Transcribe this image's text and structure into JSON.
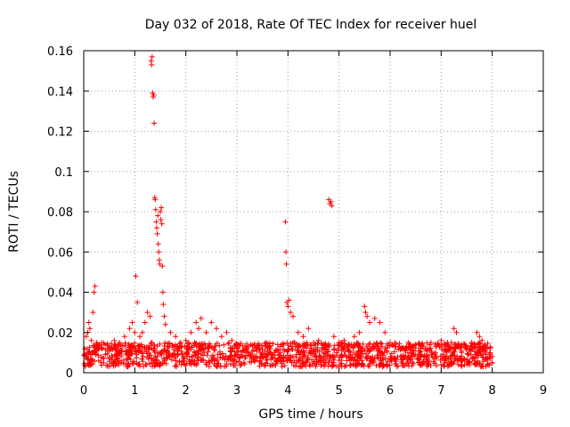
{
  "chart_data": {
    "type": "scatter",
    "title": "Day 032 of 2018, Rate Of TEC Index for receiver huel",
    "xlabel": "GPS time / hours",
    "ylabel": "ROTI / TECUs",
    "xlim": [
      0,
      9
    ],
    "ylim": [
      0,
      0.16
    ],
    "xticks": [
      0,
      1,
      2,
      3,
      4,
      5,
      6,
      7,
      8,
      9
    ],
    "xtick_labels": [
      "0",
      "1",
      "2",
      "3",
      "4",
      "5",
      "6",
      "7",
      "8",
      "9"
    ],
    "yticks": [
      0,
      0.02,
      0.04,
      0.06,
      0.08,
      0.1,
      0.12,
      0.14,
      0.16
    ],
    "ytick_labels": [
      "0",
      "0.02",
      "0.04",
      "0.06",
      "0.08",
      "0.1",
      "0.12",
      "0.14",
      "0.16"
    ],
    "grid": true,
    "marker": "+",
    "marker_color": "#ff0000",
    "series": [
      {
        "name": "ROTI",
        "points": [
          [
            0.02,
            0.012
          ],
          [
            0.05,
            0.018
          ],
          [
            0.08,
            0.02
          ],
          [
            0.1,
            0.025
          ],
          [
            0.12,
            0.022
          ],
          [
            0.15,
            0.016
          ],
          [
            0.18,
            0.03
          ],
          [
            0.2,
            0.04
          ],
          [
            0.22,
            0.043
          ],
          [
            0.25,
            0.015
          ],
          [
            0.3,
            0.012
          ],
          [
            0.4,
            0.014
          ],
          [
            0.5,
            0.013
          ],
          [
            0.6,
            0.016
          ],
          [
            0.7,
            0.015
          ],
          [
            0.8,
            0.018
          ],
          [
            0.9,
            0.022
          ],
          [
            0.95,
            0.025
          ],
          [
            1.0,
            0.02
          ],
          [
            1.02,
            0.048
          ],
          [
            1.05,
            0.035
          ],
          [
            1.1,
            0.018
          ],
          [
            1.15,
            0.02
          ],
          [
            1.2,
            0.025
          ],
          [
            1.25,
            0.03
          ],
          [
            1.3,
            0.028
          ],
          [
            1.32,
            0.155
          ],
          [
            1.33,
            0.153
          ],
          [
            1.34,
            0.157
          ],
          [
            1.35,
            0.139
          ],
          [
            1.36,
            0.137
          ],
          [
            1.37,
            0.138
          ],
          [
            1.38,
            0.124
          ],
          [
            1.39,
            0.087
          ],
          [
            1.4,
            0.086
          ],
          [
            1.41,
            0.081
          ],
          [
            1.42,
            0.075
          ],
          [
            1.43,
            0.072
          ],
          [
            1.44,
            0.069
          ],
          [
            1.45,
            0.078
          ],
          [
            1.46,
            0.064
          ],
          [
            1.47,
            0.06
          ],
          [
            1.48,
            0.056
          ],
          [
            1.49,
            0.054
          ],
          [
            1.5,
            0.08
          ],
          [
            1.51,
            0.076
          ],
          [
            1.52,
            0.082
          ],
          [
            1.53,
            0.074
          ],
          [
            1.54,
            0.053
          ],
          [
            1.55,
            0.04
          ],
          [
            1.56,
            0.034
          ],
          [
            1.58,
            0.028
          ],
          [
            1.6,
            0.024
          ],
          [
            1.7,
            0.02
          ],
          [
            1.8,
            0.018
          ],
          [
            1.9,
            0.015
          ],
          [
            2.0,
            0.016
          ],
          [
            2.1,
            0.02
          ],
          [
            2.2,
            0.025
          ],
          [
            2.25,
            0.022
          ],
          [
            2.3,
            0.027
          ],
          [
            2.4,
            0.02
          ],
          [
            2.5,
            0.025
          ],
          [
            2.6,
            0.022
          ],
          [
            2.7,
            0.018
          ],
          [
            2.8,
            0.02
          ],
          [
            2.9,
            0.016
          ],
          [
            3.0,
            0.014
          ],
          [
            3.2,
            0.012
          ],
          [
            3.4,
            0.013
          ],
          [
            3.6,
            0.012
          ],
          [
            3.8,
            0.014
          ],
          [
            3.95,
            0.075
          ],
          [
            3.96,
            0.06
          ],
          [
            3.97,
            0.054
          ],
          [
            3.98,
            0.035
          ],
          [
            4.0,
            0.033
          ],
          [
            4.02,
            0.036
          ],
          [
            4.05,
            0.03
          ],
          [
            4.1,
            0.028
          ],
          [
            4.2,
            0.02
          ],
          [
            4.3,
            0.018
          ],
          [
            4.4,
            0.022
          ],
          [
            4.5,
            0.015
          ],
          [
            4.6,
            0.016
          ],
          [
            4.7,
            0.014
          ],
          [
            4.8,
            0.086
          ],
          [
            4.82,
            0.084
          ],
          [
            4.84,
            0.085
          ],
          [
            4.86,
            0.083
          ],
          [
            4.9,
            0.018
          ],
          [
            5.0,
            0.015
          ],
          [
            5.1,
            0.016
          ],
          [
            5.2,
            0.014
          ],
          [
            5.3,
            0.018
          ],
          [
            5.4,
            0.02
          ],
          [
            5.5,
            0.033
          ],
          [
            5.52,
            0.03
          ],
          [
            5.55,
            0.028
          ],
          [
            5.6,
            0.025
          ],
          [
            5.7,
            0.027
          ],
          [
            5.8,
            0.025
          ],
          [
            5.9,
            0.02
          ],
          [
            6.0,
            0.015
          ],
          [
            6.1,
            0.013
          ],
          [
            6.2,
            0.012
          ],
          [
            6.3,
            0.011
          ],
          [
            6.4,
            0.012
          ],
          [
            6.5,
            0.014
          ],
          [
            6.6,
            0.013
          ],
          [
            6.7,
            0.012
          ],
          [
            6.8,
            0.015
          ],
          [
            6.9,
            0.013
          ],
          [
            7.0,
            0.016
          ],
          [
            7.1,
            0.014
          ],
          [
            7.2,
            0.015
          ],
          [
            7.25,
            0.022
          ],
          [
            7.3,
            0.02
          ],
          [
            7.4,
            0.014
          ],
          [
            7.5,
            0.013
          ],
          [
            7.6,
            0.015
          ],
          [
            7.7,
            0.02
          ],
          [
            7.75,
            0.018
          ],
          [
            7.8,
            0.016
          ],
          [
            7.85,
            0.014
          ],
          [
            7.9,
            0.012
          ],
          [
            7.95,
            0.01
          ],
          [
            8.0,
            0.008
          ]
        ]
      }
    ],
    "dense_band": {
      "x_start": 0.0,
      "x_end": 8.0,
      "y_low": 0.003,
      "y_high": 0.015
    }
  }
}
